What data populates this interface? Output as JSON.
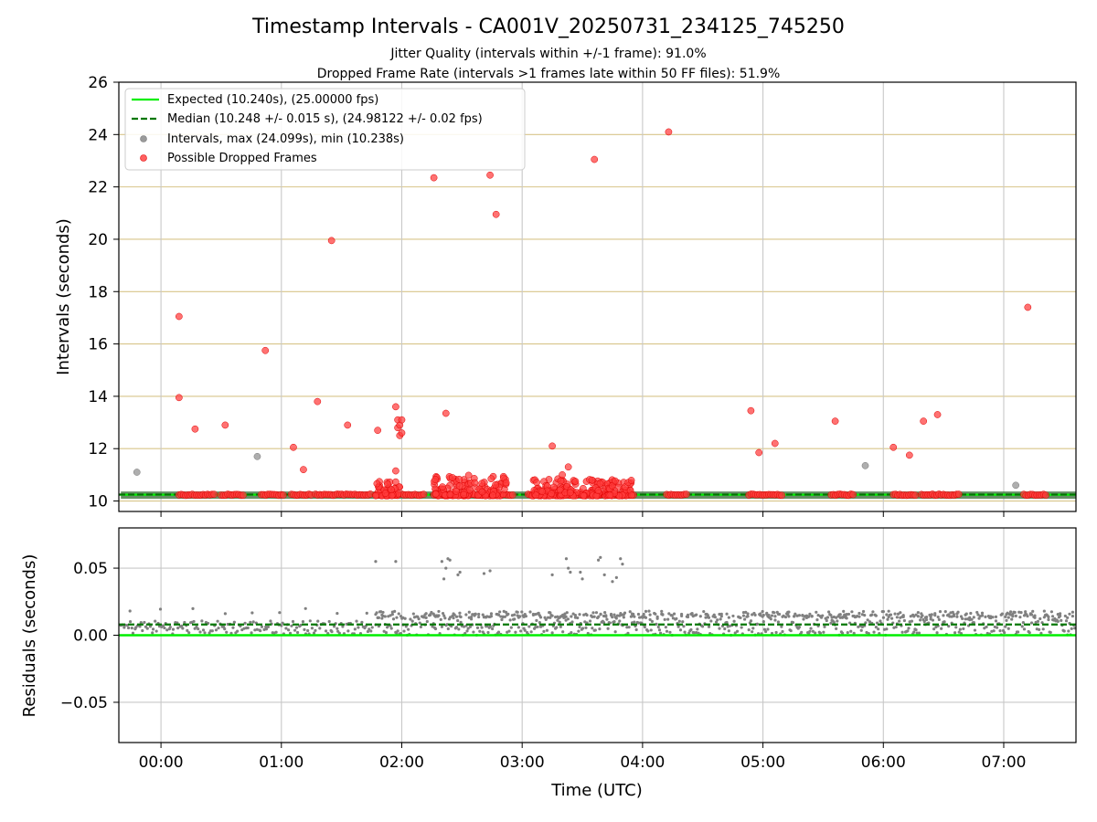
{
  "chart_data": [
    {
      "type": "scatter",
      "title": "Timestamp Intervals - CA001V_20250731_234125_745250",
      "subtitle_1": "Jitter Quality (intervals within +/-1 frame): 91.0%",
      "subtitle_2": "Dropped Frame Rate (intervals >1 frames late within 50 FF files): 51.9%",
      "ylabel": "Intervals (seconds)",
      "ylim": [
        9.6,
        26
      ],
      "yticks": [
        10,
        12,
        14,
        16,
        18,
        20,
        22,
        24,
        26
      ],
      "xlim_minutes": [
        -21,
        456
      ],
      "grid": true,
      "legend_position": "upper-left",
      "legend": [
        {
          "label": "Expected (10.240s), (25.00000 fps)",
          "style": "solid-line",
          "color": "#00ee00"
        },
        {
          "label": "Median (10.248 +/- 0.015 s), (24.98122 +/- 0.02 fps)",
          "style": "dashed-line",
          "color": "#007700"
        },
        {
          "label": "Intervals, max (24.099s), min (10.238s)",
          "style": "marker",
          "color": "#9a9a9a"
        },
        {
          "label": "Possible Dropped Frames",
          "style": "marker",
          "color": "#ff3030"
        }
      ],
      "expected": 10.24,
      "median": 10.248,
      "intervals_outliers": [
        {
          "t": "23:48",
          "y": 11.1
        },
        {
          "t": "00:48",
          "y": 11.7
        },
        {
          "t": "05:51",
          "y": 11.35
        },
        {
          "t": "07:06",
          "y": 10.6
        }
      ],
      "dropped_outliers": [
        {
          "t": "00:09",
          "y": 17.05
        },
        {
          "t": "00:09",
          "y": 13.95
        },
        {
          "t": "00:17",
          "y": 12.75
        },
        {
          "t": "00:32",
          "y": 12.9
        },
        {
          "t": "00:52",
          "y": 15.75
        },
        {
          "t": "01:06",
          "y": 12.05
        },
        {
          "t": "01:11",
          "y": 11.2
        },
        {
          "t": "01:18",
          "y": 13.8
        },
        {
          "t": "01:25",
          "y": 19.95
        },
        {
          "t": "01:33",
          "y": 12.9
        },
        {
          "t": "01:48",
          "y": 12.7
        },
        {
          "t": "01:57",
          "y": 13.6
        },
        {
          "t": "01:58",
          "y": 13.1
        },
        {
          "t": "01:58",
          "y": 12.8
        },
        {
          "t": "01:59",
          "y": 12.5
        },
        {
          "t": "01:59",
          "y": 12.9
        },
        {
          "t": "02:00",
          "y": 13.1
        },
        {
          "t": "02:00",
          "y": 12.6
        },
        {
          "t": "01:57",
          "y": 11.15
        },
        {
          "t": "02:16",
          "y": 22.35
        },
        {
          "t": "02:22",
          "y": 13.35
        },
        {
          "t": "02:44",
          "y": 22.45
        },
        {
          "t": "02:47",
          "y": 20.95
        },
        {
          "t": "02:52",
          "y": 10.7
        },
        {
          "t": "03:15",
          "y": 12.1
        },
        {
          "t": "03:20",
          "y": 11.0
        },
        {
          "t": "03:23",
          "y": 11.3
        },
        {
          "t": "03:36",
          "y": 23.05
        },
        {
          "t": "04:13",
          "y": 24.1
        },
        {
          "t": "04:54",
          "y": 13.45
        },
        {
          "t": "04:58",
          "y": 11.85
        },
        {
          "t": "05:06",
          "y": 12.2
        },
        {
          "t": "05:36",
          "y": 13.05
        },
        {
          "t": "06:05",
          "y": 12.05
        },
        {
          "t": "06:13",
          "y": 11.75
        },
        {
          "t": "06:20",
          "y": 13.05
        },
        {
          "t": "06:27",
          "y": 13.3
        },
        {
          "t": "07:12",
          "y": 17.4
        }
      ],
      "dropped_bands_at_baseline": [
        [
          "00:09",
          "00:27"
        ],
        [
          "00:30",
          "00:42"
        ],
        [
          "00:50",
          "01:02"
        ],
        [
          "01:05",
          "01:15"
        ],
        [
          "01:17",
          "01:45"
        ],
        [
          "01:47",
          "01:58"
        ],
        [
          "02:00",
          "02:12"
        ],
        [
          "02:16",
          "02:50"
        ],
        [
          "02:52",
          "02:56"
        ],
        [
          "03:03",
          "03:56"
        ],
        [
          "04:12",
          "04:22"
        ],
        [
          "04:53",
          "05:10"
        ],
        [
          "05:34",
          "05:45"
        ],
        [
          "06:05",
          "06:16"
        ],
        [
          "06:19",
          "06:38"
        ],
        [
          "07:10",
          "07:22"
        ]
      ],
      "dense_clusters": [
        {
          "from": "01:47",
          "to": "01:59",
          "ymin": 10.2,
          "ymax": 10.75
        },
        {
          "from": "02:16",
          "to": "02:52",
          "ymin": 10.2,
          "ymax": 11.0
        },
        {
          "from": "03:05",
          "to": "03:56",
          "ymin": 10.2,
          "ymax": 10.85
        }
      ],
      "interval_points_baseline_from": "23:40"
    },
    {
      "type": "scatter",
      "xlabel": "Time (UTC)",
      "ylabel": "Residuals (seconds)",
      "ylim": [
        -0.08,
        0.08
      ],
      "yticks": [
        0.05,
        0.0,
        -0.05
      ],
      "ytick_labels": [
        "0.05",
        "0.00",
        "−0.05"
      ],
      "xticks": [
        "00:00",
        "01:00",
        "02:00",
        "03:00",
        "04:00",
        "05:00",
        "06:00",
        "07:00"
      ],
      "grid": true,
      "expected_residual": 0.0,
      "median_residual": 0.008,
      "residual_color": "#808080",
      "high_residuals": [
        {
          "t": "01:47",
          "y": 0.055
        },
        {
          "t": "01:57",
          "y": 0.055
        },
        {
          "t": "02:20",
          "y": 0.055
        },
        {
          "t": "02:21",
          "y": 0.042
        },
        {
          "t": "02:22",
          "y": 0.05
        },
        {
          "t": "02:23",
          "y": 0.057
        },
        {
          "t": "02:24",
          "y": 0.056
        },
        {
          "t": "02:28",
          "y": 0.045
        },
        {
          "t": "02:29",
          "y": 0.047
        },
        {
          "t": "02:41",
          "y": 0.046
        },
        {
          "t": "02:44",
          "y": 0.048
        },
        {
          "t": "03:15",
          "y": 0.045
        },
        {
          "t": "03:22",
          "y": 0.057
        },
        {
          "t": "03:23",
          "y": 0.05
        },
        {
          "t": "03:24",
          "y": 0.047
        },
        {
          "t": "03:29",
          "y": 0.047
        },
        {
          "t": "03:30",
          "y": 0.042
        },
        {
          "t": "03:38",
          "y": 0.056
        },
        {
          "t": "03:39",
          "y": 0.058
        },
        {
          "t": "03:41",
          "y": 0.045
        },
        {
          "t": "03:45",
          "y": 0.04
        },
        {
          "t": "03:47",
          "y": 0.043
        },
        {
          "t": "03:49",
          "y": 0.057
        },
        {
          "t": "03:50",
          "y": 0.053
        }
      ],
      "residual_band_early": {
        "to": "01:46",
        "ymin": 0.001,
        "ymax": 0.011,
        "spikes_max": 0.02
      },
      "residual_band_late": {
        "from": "01:47",
        "ymin": 0.0,
        "ymax": 0.018
      }
    }
  ]
}
